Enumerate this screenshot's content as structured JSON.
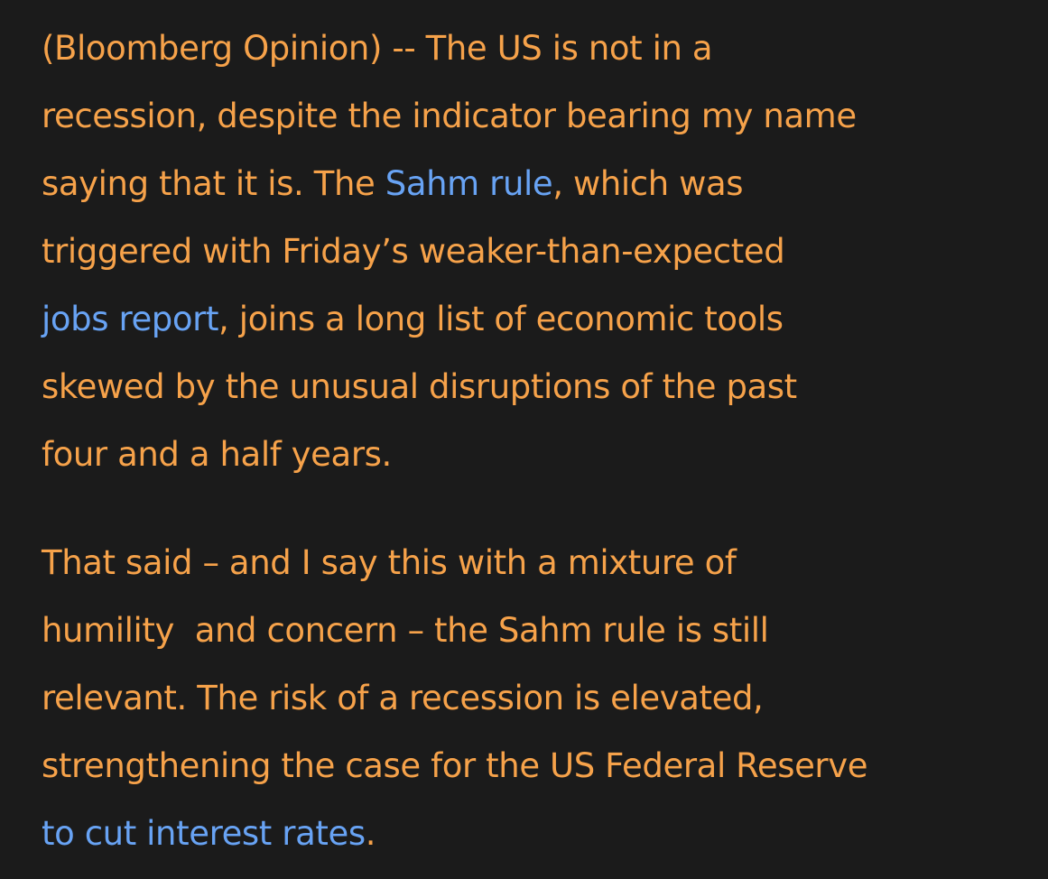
{
  "article": {
    "paragraph_1": {
      "line_1": "(Bloomberg Opinion) -- The US is not in a",
      "line_2": "recession, despite the indicator bearing my name",
      "line_3_before": "saying that it is. The ",
      "sahm_rule_link": "Sahm rule",
      "line_3_after": ", which was",
      "line_4": "triggered with Friday’s weaker-than-expected",
      "jobs_report_link": "jobs report",
      "line_5_after": ", joins a long list of economic tools",
      "line_6": "skewed by the unusual disruptions of the past",
      "line_7": "four and a half years."
    },
    "paragraph_2": {
      "line_1": "That said – and I say this with a mixture of",
      "line_2": "humility  and concern – the Sahm rule is still",
      "line_3": "relevant. The risk of a recession is elevated,",
      "line_4": "strengthening the case for the US Federal Reserve",
      "interest_rates_link": "to cut interest rates",
      "line_5_after": "."
    }
  },
  "colors": {
    "background": "#1b1b1b",
    "text": "#f6a24a",
    "link": "#68a3f4"
  }
}
